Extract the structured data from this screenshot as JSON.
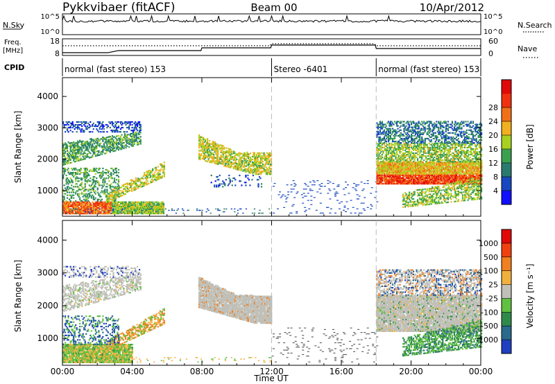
{
  "header": {
    "station": "Pykkvibaer (fitACF)",
    "beam": "Beam 00",
    "date": "10/Apr/2012"
  },
  "noise_panel": {
    "left_label": "N.Sky",
    "right_label": "N.Search",
    "left_ticks": [
      "10^5",
      "10^0"
    ],
    "right_ticks": [
      "10^5",
      "10^0"
    ]
  },
  "freq_panel": {
    "left_label_line1": "Freq.",
    "left_label_line2": "[MHz]",
    "right_label": "Nave",
    "left_ticks": [
      "18",
      "8"
    ],
    "right_ticks": [
      "60",
      "0"
    ]
  },
  "cpid": {
    "label": "CPID",
    "segments": [
      {
        "name": "normal (fast stereo) 153",
        "start_hour": 0,
        "end_hour": 12
      },
      {
        "name": "Stereo -6401",
        "start_hour": 12,
        "end_hour": 18
      },
      {
        "name": "normal (fast stereo) 153",
        "start_hour": 18,
        "end_hour": 24
      }
    ]
  },
  "x_axis": {
    "label": "Time UT",
    "tick_labels": [
      "00:00",
      "04:00",
      "08:00",
      "12:00",
      "16:00",
      "20:00",
      "00:00"
    ]
  },
  "chart_data": [
    {
      "type": "heatmap",
      "name": "power",
      "ylabel": "Slant Range [km]",
      "xlim": [
        0,
        24
      ],
      "ylim": [
        180,
        4600
      ],
      "y_ticks": [
        1000,
        2000,
        3000,
        4000
      ],
      "colorbar": {
        "label": "Power [dB]",
        "ticks": [
          "4",
          "8",
          "12",
          "16",
          "20",
          "24",
          "28"
        ],
        "colors": [
          "#1010ff",
          "#1848c0",
          "#2a7a70",
          "#3aa050",
          "#a8d020",
          "#f0b020",
          "#f07018",
          "#f03010",
          "#e00808"
        ]
      }
    },
    {
      "type": "heatmap",
      "name": "velocity",
      "ylabel": "Slant Range [km]",
      "xlim": [
        0,
        24
      ],
      "ylim": [
        180,
        4600
      ],
      "y_ticks": [
        1000,
        2000,
        3000,
        4000
      ],
      "colorbar": {
        "label": "Velocity [m s⁻¹]",
        "ticks": [
          "1000",
          "500",
          "100",
          "25",
          "-25",
          "-100",
          "-500",
          "-1000"
        ],
        "colors": [
          "#2040c0",
          "#2a6a8a",
          "#2f8a4a",
          "#60c040",
          "#c0c0b8",
          "#f0b040",
          "#f08020",
          "#f04010",
          "#e00808"
        ]
      }
    }
  ]
}
